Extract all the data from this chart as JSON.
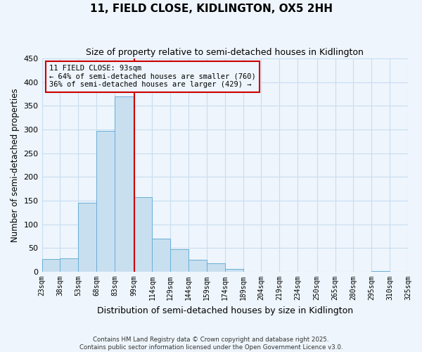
{
  "title": "11, FIELD CLOSE, KIDLINGTON, OX5 2HH",
  "subtitle": "Size of property relative to semi-detached houses in Kidlington",
  "xlabel": "Distribution of semi-detached houses by size in Kidlington",
  "ylabel": "Number of semi-detached properties",
  "bin_edges": [
    23,
    38,
    53,
    68,
    83,
    99,
    114,
    129,
    144,
    159,
    174,
    189,
    204,
    219,
    234,
    250,
    265,
    280,
    295,
    310,
    325
  ],
  "bin_labels": [
    "23sqm",
    "38sqm",
    "53sqm",
    "68sqm",
    "83sqm",
    "99sqm",
    "114sqm",
    "129sqm",
    "144sqm",
    "159sqm",
    "174sqm",
    "189sqm",
    "204sqm",
    "219sqm",
    "234sqm",
    "250sqm",
    "265sqm",
    "280sqm",
    "295sqm",
    "310sqm",
    "325sqm"
  ],
  "counts": [
    27,
    28,
    145,
    297,
    370,
    158,
    70,
    48,
    25,
    18,
    6,
    0,
    0,
    0,
    0,
    0,
    0,
    0,
    1,
    0
  ],
  "bar_color": "#c8dff0",
  "bar_edge_color": "#6aaed6",
  "property_size": 99,
  "pct_smaller": 64,
  "n_smaller": 760,
  "pct_larger": 36,
  "n_larger": 429,
  "vline_color": "#cc0000",
  "ylim": [
    0,
    450
  ],
  "yticks": [
    0,
    50,
    100,
    150,
    200,
    250,
    300,
    350,
    400,
    450
  ],
  "grid_color": "#c8ddf0",
  "background_color": "#eef5fc",
  "footer_line1": "Contains HM Land Registry data © Crown copyright and database right 2025.",
  "footer_line2": "Contains public sector information licensed under the Open Government Licence v3.0."
}
